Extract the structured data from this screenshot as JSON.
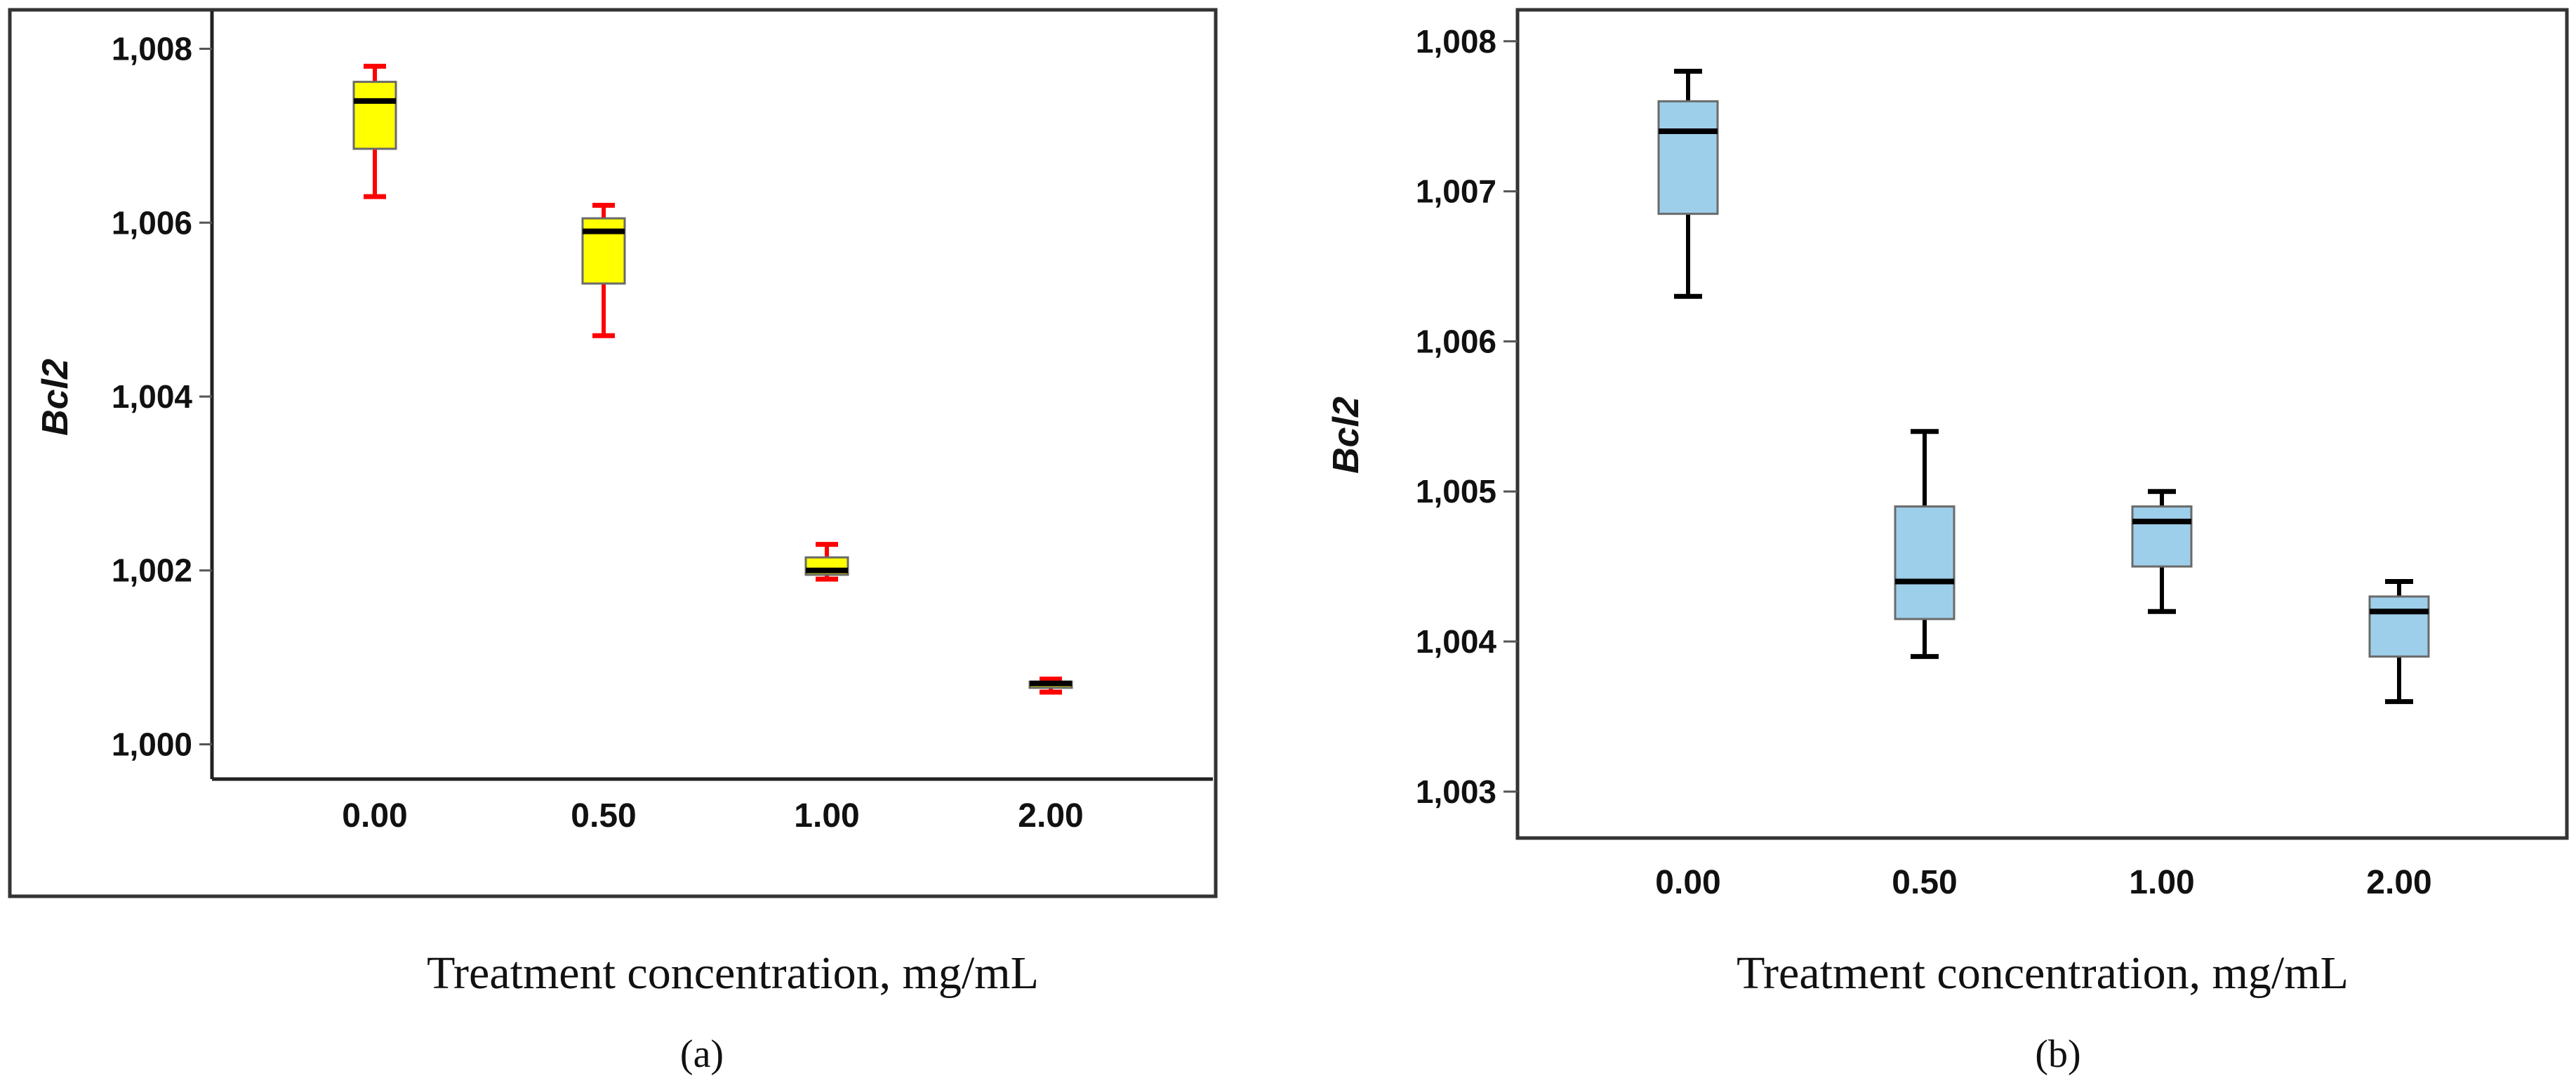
{
  "chart_data": [
    {
      "type": "boxplot",
      "panel_label": "(a)",
      "xlabel": "Treatment concentration, mg/mL",
      "ylabel": "Bcl2",
      "categories": [
        "0.00",
        "0.50",
        "1.00",
        "2.00"
      ],
      "yticks": [
        "1,000",
        "1,002",
        "1,004",
        "1,006",
        "1,008"
      ],
      "ylim": [
        0.9996,
        1.0084
      ],
      "box_color": "#ffff00",
      "whisker_color": "#ff0000",
      "median_color": "#000000",
      "boxes": [
        {
          "category": "0.00",
          "min": 1.0063,
          "q1": 1.00685,
          "median": 1.0074,
          "q3": 1.00762,
          "max": 1.0078
        },
        {
          "category": "0.50",
          "min": 1.0047,
          "q1": 1.0053,
          "median": 1.0059,
          "q3": 1.00605,
          "max": 1.0062
        },
        {
          "category": "1.00",
          "min": 1.0019,
          "q1": 1.00195,
          "median": 1.002,
          "q3": 1.00215,
          "max": 1.0023
        },
        {
          "category": "2.00",
          "min": 1.0006,
          "q1": 1.00065,
          "median": 1.0007,
          "q3": 1.00072,
          "max": 1.00075
        }
      ]
    },
    {
      "type": "boxplot",
      "panel_label": "(b)",
      "xlabel": "Treatment concentration, mg/mL",
      "ylabel": "Bcl2",
      "categories": [
        "0.00",
        "0.50",
        "1.00",
        "2.00"
      ],
      "yticks": [
        "1,003",
        "1,004",
        "1,005",
        "1,006",
        "1,007",
        "1,008"
      ],
      "ylim": [
        1.0027,
        1.0082
      ],
      "box_color": "#9ecfea",
      "whisker_color": "#000000",
      "median_color": "#000000",
      "boxes": [
        {
          "category": "0.00",
          "min": 1.0063,
          "q1": 1.00685,
          "median": 1.0074,
          "q3": 1.0076,
          "max": 1.0078
        },
        {
          "category": "0.50",
          "min": 1.0039,
          "q1": 1.00415,
          "median": 1.0044,
          "q3": 1.0049,
          "max": 1.0054
        },
        {
          "category": "1.00",
          "min": 1.0042,
          "q1": 1.0045,
          "median": 1.0048,
          "q3": 1.0049,
          "max": 1.005
        },
        {
          "category": "2.00",
          "min": 1.0036,
          "q1": 1.0039,
          "median": 1.0042,
          "q3": 1.0043,
          "max": 1.0044
        }
      ]
    }
  ]
}
